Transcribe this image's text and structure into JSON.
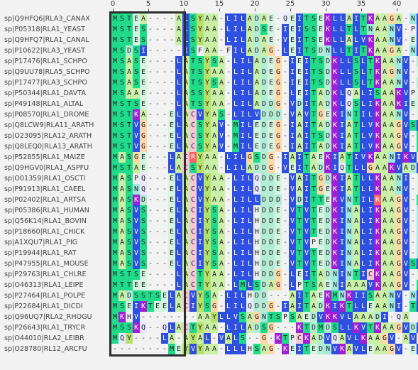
{
  "ruler": {
    "ticks": [
      "0",
      "5",
      "10",
      "15",
      "20",
      "25",
      "30",
      "35",
      "40"
    ]
  },
  "sequences": [
    {
      "name": "sp|Q9HFQ6|RLA3_CANAX",
      "seq": "MSTEA----ALSYAA-LILADAE-QEITSEKLLAITKAAGA-NV"
    },
    {
      "name": "sp|P05318|RLA1_YEAST",
      "seq": "MSTES----ALSYAA-LILADSE-IEISSEKLLTLTNAANV-PV"
    },
    {
      "name": "sp|Q9HFQ7|RLA1_CANAL",
      "seq": "MSTES----ALSYAA-LILADAE-VEITSEKLLALVKAANV-EV"
    },
    {
      "name": "sp|P10622|RLA3_YEAST",
      "seq": "MSDSI-----ISFAA-FILADAG-LEITSDNLLTITKAAGA-NV"
    },
    {
      "name": "sp|P17476|RLA1_SCHPO",
      "seq": "MSASE----LATSYSA-LILADEG-IEITSDKLLSLTKAANV-DV"
    },
    {
      "name": "sp|Q9UU78|RLA5_SCHPO",
      "seq": "MSASE----LATSYAA-LILADEG-IEITSDKLLSLTKAGNV-EV"
    },
    {
      "name": "sp|P17477|RLA3_SCHPO",
      "seq": "MSASE----LATSYSA-LILADEG-IEITSDKLLSLTKAANV-DV"
    },
    {
      "name": "sp|P50344|RLA1_DAVTA",
      "seq": "MSAAE----LASSYAA-LILADEG-LEITADKLQALISAAKVPEI"
    },
    {
      "name": "sp|P49148|RLA1_ALTAL",
      "seq": "MSTSE----LATSYAA-LILADDG-VDITADKLQSLIKAAKIEEV"
    },
    {
      "name": "sp|P08570|RLA1_DROME",
      "seq": "MSTKA---ELACVYAS-LILVDDD-VAVTGEKINTILKAANV-EV"
    },
    {
      "name": "sp|Q8LCW9|RLA11_ARATH",
      "seq": "MSTVG---ELACSYAV-MILEDEG-IAITADKIATLVKAAGVSIE"
    },
    {
      "name": "sp|O23095|RLA12_ARATH",
      "seq": "MSTVG---ELACSYAV-MILEDEG-IAITSDKIATLVKAAGV-SV"
    },
    {
      "name": "sp|Q8LEQ0|RLA13_ARATH",
      "seq": "MSTVG---ELACSYAV-MILEDEG-IAITADKIATLVKAAGV-TV"
    },
    {
      "name": "sp|P52855|RLA1_MAIZE",
      "seq": "MASGE---LACRYAA-LILGSDG-IAITAEKIATIVKAANIKVE"
    },
    {
      "name": "sp|Q9HGV0|RLA1_ASPFU",
      "seq": "MSTAE---LACSYAA-LILADDG-VEITADKIQTLLGAAKVADV"
    },
    {
      "name": "sp|O01359|RLA1_OSCTI",
      "seq": "MASPQ---ELACVYAA-LILQDDE-VAITGDKIATLLKAANI-EF"
    },
    {
      "name": "sp|P91913|RLA1_CAEEL",
      "seq": "MASNQ---ELACVYAA-LILQDDE-VAITGEKIATLLKAANV-EF"
    },
    {
      "name": "sp|P02402|RLA1_ARTSA",
      "seq": "MASKD---ELACVYAA-LILLDDD-VDITTEKVNTILRAAGV-SV"
    },
    {
      "name": "sp|P05386|RLA1_HUMAN",
      "seq": "MASVS---ELACIYSA-LILHDDE-VTVTEDKINALIKAAGV-NV"
    },
    {
      "name": "sp|Q56K14|RLA1_BOVIN",
      "seq": "MASVS---ELACIYSA-LILHDDE-VTVTEDKINALIKAAGV-NV"
    },
    {
      "name": "sp|P18660|RLA1_CHICK",
      "seq": "MASVS---ELACIYSA-LILHDDE-VTVTEDKINALIKAAGV-NV"
    },
    {
      "name": "sp|A1XQU7|RLA1_PIG",
      "seq": "MASVS---ELACIYSA-LILHDDE-VTVPEDKINALIKAAGV-NV"
    },
    {
      "name": "sp|P19944|RLA1_RAT",
      "seq": "MASVS---ELACIYSA-LILHDDE-VTVTEDKINALIKAAGV-NV"
    },
    {
      "name": "sp|P47955|RLA1_MOUSE",
      "seq": "MASVS---ELACIYSA-LILHDDE-VTVTEDKINALIKAAGVSIE"
    },
    {
      "name": "sp|P29763|RLA1_CHLRE",
      "seq": "MSTSE----LACTYAA-LILHDDG-LEITADNINTICKAAGV-EV"
    },
    {
      "name": "sp|O46313|RLA1_LEIPE",
      "seq": "MTTEE----LACTYAA-LMLSDAG-LPTSAENIAAAVKAAGV-SV"
    },
    {
      "name": "sp|P27464|RLA1_POLPE",
      "seq": "MADSSTSELACVYSA-LILHDD---AITAEKMNKIISAANV-NV"
    },
    {
      "name": "sp|P22684|RLA1_DICDI",
      "seq": "MSEIKTEELACIYSG-LILQDDG-IAITADKIKTLLEAANI-TV"
    },
    {
      "name": "sp|Q96UQ7|RLA2_RHOGU",
      "seq": "MKHV--------AAYLLVSAGNTSPSAEDVKKVLAAADI-QA"
    },
    {
      "name": "sp|P26643|RLA1_TRYCR",
      "seq": "MSSKQ--QLACTYAA-LILADSG---KTDMDSLLKVTKAAGVDV"
    },
    {
      "name": "sp|O44010|RLA2_LEIBR",
      "seq": "MQY----LA-AYAL-VALS--G-KTPCKADVQAVLKAAGV-AV"
    },
    {
      "name": "sp|O28780|RL12_ARCFU",
      "seq": "--------MEYVYAA-LLLHSAG-KEITEDNVKAVLEAAGV-EV"
    }
  ],
  "colors": {
    "bg": "#f2f2f2",
    "M": "#1fdb8a",
    "S": "#1fdb8a",
    "T": "#1fdb8a",
    "E": "#d5f5e3",
    "A": "#c9f0a6",
    "L": "#2f4fe0",
    "C": "#f7c8d8",
    "V": "#2f4fe0",
    "I": "#2f4fe0",
    "Y": "#b7e06b",
    "K": "#a21dd6",
    "R": "#ff5f5f",
    "D": "#b5ecd6",
    "Q": "#e8e8ff",
    "G": "#ffd8a8",
    "N": "#9fe9e0",
    "gap": "#f2f2f2"
  }
}
